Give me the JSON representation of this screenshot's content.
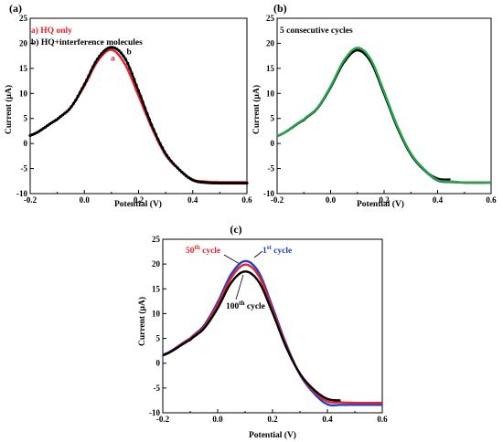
{
  "chart_data": [
    {
      "type": "line",
      "panel_label": "(a)",
      "xlabel": "Potential (V)",
      "ylabel": "Current (µA)",
      "xlim": [
        -0.2,
        0.6
      ],
      "ylim": [
        -10,
        25
      ],
      "xticks": [
        "-0.2",
        "0.0",
        "0.2",
        "0.4",
        "0.6"
      ],
      "yticks": [
        "-10",
        "-5",
        "0",
        "5",
        "10",
        "15",
        "20",
        "25"
      ],
      "legend_lines": [
        {
          "text": "a) HQ only",
          "color": "#e8202a"
        },
        {
          "text": "b) HQ+interference molecules",
          "color": "#000000"
        }
      ],
      "curve_labels": [
        {
          "text": "a",
          "x": 0.105,
          "y": 16.5,
          "color": "#e8202a"
        },
        {
          "text": "b",
          "x": 0.165,
          "y": 17.8,
          "color": "#000000"
        }
      ],
      "series": [
        {
          "color": "#e8202a",
          "dotted": false,
          "x_end": 0.6,
          "x": [
            -0.2,
            -0.1,
            -0.05,
            0.0,
            0.05,
            0.1,
            0.15,
            0.2,
            0.25,
            0.3,
            0.35,
            0.4,
            0.45,
            0.5,
            0.6
          ],
          "y": [
            1.6,
            4.8,
            7.2,
            11.5,
            16.5,
            18.7,
            15.8,
            9.5,
            3.0,
            -2.3,
            -5.2,
            -7.2,
            -7.6,
            -7.7,
            -7.7
          ]
        },
        {
          "color": "#000000",
          "dotted": true,
          "x_end": 0.6,
          "x": [
            -0.2,
            -0.1,
            -0.05,
            0.0,
            0.05,
            0.1,
            0.15,
            0.2,
            0.25,
            0.3,
            0.35,
            0.4,
            0.45,
            0.5,
            0.6
          ],
          "y": [
            1.6,
            4.8,
            7.2,
            11.8,
            17.0,
            19.2,
            17.0,
            10.5,
            3.5,
            -2.0,
            -5.2,
            -7.3,
            -7.8,
            -7.9,
            -7.9
          ]
        }
      ]
    },
    {
      "type": "line",
      "panel_label": "(b)",
      "annotation": "5 consecutive cycles",
      "xlabel": "Potential (V)",
      "ylabel": "Current (µA)",
      "xlim": [
        -0.2,
        0.6
      ],
      "ylim": [
        -10,
        25
      ],
      "xticks": [
        "-0.2",
        "0.0",
        "0.2",
        "0.4",
        "0.6"
      ],
      "yticks": [
        "-10",
        "-5",
        "0",
        "5",
        "10",
        "15",
        "20",
        "25"
      ],
      "series": [
        {
          "color": "#1f3fd0",
          "dotted": false,
          "x_end": 0.6,
          "x": [
            -0.2,
            -0.1,
            -0.05,
            0.0,
            0.05,
            0.1,
            0.15,
            0.2,
            0.25,
            0.3,
            0.35,
            0.4,
            0.45,
            0.5,
            0.6
          ],
          "y": [
            1.5,
            4.7,
            7.0,
            11.2,
            16.3,
            18.7,
            16.4,
            10.0,
            3.2,
            -2.1,
            -5.3,
            -7.4,
            -7.7,
            -7.8,
            -7.8
          ]
        },
        {
          "color": "#c81fc8",
          "dotted": false,
          "x_end": 0.6,
          "x": [
            -0.2,
            -0.1,
            -0.05,
            0.0,
            0.05,
            0.1,
            0.15,
            0.2,
            0.25,
            0.3,
            0.35,
            0.4,
            0.45,
            0.5,
            0.6
          ],
          "y": [
            1.5,
            4.7,
            7.0,
            11.3,
            16.4,
            18.8,
            16.5,
            10.1,
            3.3,
            -2.0,
            -5.2,
            -7.3,
            -7.6,
            -7.8,
            -7.8
          ]
        },
        {
          "color": "#e8202a",
          "dotted": false,
          "x_end": 0.6,
          "x": [
            -0.2,
            -0.1,
            -0.05,
            0.0,
            0.05,
            0.1,
            0.15,
            0.2,
            0.25,
            0.3,
            0.35,
            0.4,
            0.45,
            0.5,
            0.6
          ],
          "y": [
            1.5,
            4.7,
            7.0,
            11.3,
            16.5,
            18.9,
            16.6,
            10.2,
            3.3,
            -2.0,
            -5.2,
            -7.3,
            -7.6,
            -7.8,
            -7.8
          ]
        },
        {
          "color": "#000000",
          "dotted": false,
          "x_end": 0.45,
          "x": [
            -0.2,
            -0.1,
            -0.05,
            0.0,
            0.05,
            0.1,
            0.15,
            0.2,
            0.25,
            0.3,
            0.35,
            0.4,
            0.45
          ],
          "y": [
            1.5,
            4.7,
            7.0,
            11.2,
            16.2,
            18.6,
            16.3,
            9.9,
            3.1,
            -2.2,
            -5.3,
            -7.0,
            -7.2
          ]
        },
        {
          "color": "#22a84a",
          "dotted": false,
          "x_end": 0.6,
          "x": [
            -0.2,
            -0.1,
            -0.05,
            0.0,
            0.05,
            0.1,
            0.15,
            0.2,
            0.25,
            0.3,
            0.35,
            0.4,
            0.45,
            0.5,
            0.6
          ],
          "y": [
            1.5,
            4.8,
            7.1,
            11.4,
            16.6,
            19.1,
            16.8,
            10.3,
            3.4,
            -2.0,
            -5.2,
            -7.3,
            -7.6,
            -7.8,
            -7.8
          ]
        }
      ]
    },
    {
      "type": "line",
      "panel_label": "(c)",
      "xlabel": "Potential (V)",
      "ylabel": "Current (µA)",
      "xlim": [
        -0.2,
        0.6
      ],
      "ylim": [
        -10,
        25
      ],
      "xticks": [
        "-0.2",
        "0.0",
        "0.2",
        "0.4",
        "0.6"
      ],
      "yticks": [
        "-10",
        "-5",
        "0",
        "5",
        "10",
        "15",
        "20",
        "25"
      ],
      "annotations": [
        {
          "pre": "50",
          "sup": "th",
          "post": " cycle",
          "color": "#e8202a"
        },
        {
          "pre": "1",
          "sup": "st",
          "post": " cycle",
          "color": "#1f3fd0"
        },
        {
          "pre": "100",
          "sup": "th",
          "post": " cycle",
          "color": "#000000"
        }
      ],
      "series": [
        {
          "color": "#1f3fd0",
          "dotted": false,
          "x_end": 0.6,
          "x": [
            -0.2,
            -0.1,
            -0.05,
            0.0,
            0.05,
            0.1,
            0.15,
            0.2,
            0.25,
            0.3,
            0.35,
            0.4,
            0.45,
            0.5,
            0.6
          ],
          "y": [
            1.7,
            5.0,
            7.6,
            12.3,
            18.0,
            20.6,
            18.3,
            11.3,
            3.8,
            -2.3,
            -6.0,
            -8.3,
            -8.4,
            -8.4,
            -8.4
          ]
        },
        {
          "color": "#e8202a",
          "dotted": false,
          "x_end": 0.6,
          "x": [
            -0.2,
            -0.1,
            -0.05,
            0.0,
            0.05,
            0.1,
            0.15,
            0.2,
            0.25,
            0.3,
            0.35,
            0.4,
            0.45,
            0.5,
            0.6
          ],
          "y": [
            1.6,
            4.9,
            7.3,
            11.8,
            17.3,
            19.9,
            17.6,
            10.8,
            3.5,
            -2.2,
            -5.6,
            -7.7,
            -7.9,
            -8.0,
            -8.0
          ]
        },
        {
          "color": "#000000",
          "dotted": false,
          "x_end": 0.45,
          "x": [
            -0.2,
            -0.1,
            -0.05,
            0.0,
            0.05,
            0.1,
            0.15,
            0.2,
            0.25,
            0.3,
            0.35,
            0.4,
            0.45
          ],
          "y": [
            1.6,
            4.7,
            7.0,
            11.1,
            16.3,
            18.5,
            16.4,
            10.2,
            3.2,
            -2.1,
            -5.3,
            -7.2,
            -7.5
          ]
        }
      ]
    }
  ]
}
